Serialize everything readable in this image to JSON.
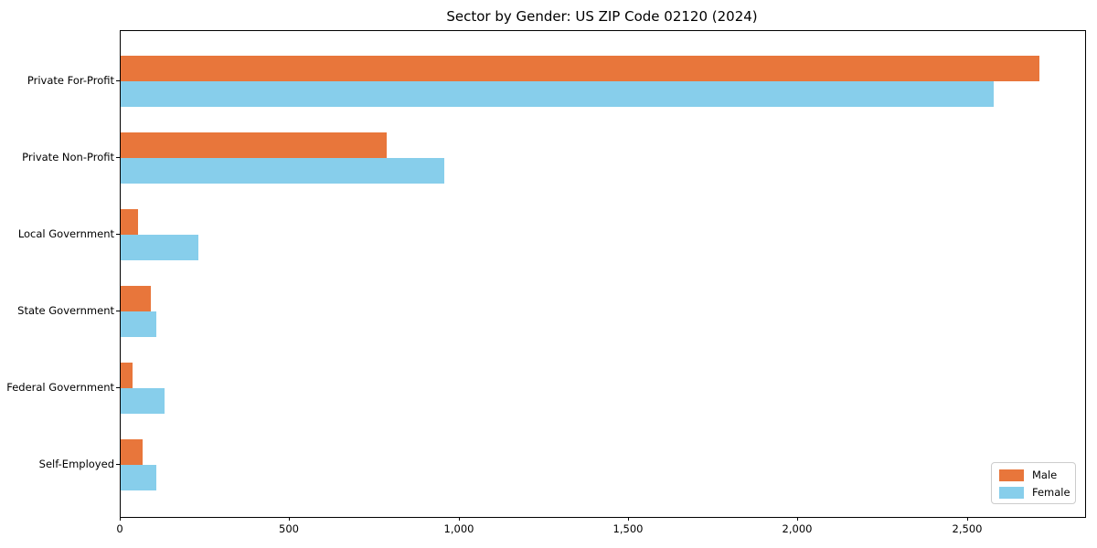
{
  "chart_data": {
    "type": "bar",
    "orientation": "horizontal",
    "title": "Sector by Gender: US ZIP Code 02120 (2024)",
    "xlabel": "",
    "ylabel": "",
    "categories": [
      "Private For-Profit",
      "Private Non-Profit",
      "Local Government",
      "State Government",
      "Federal Government",
      "Self-Employed"
    ],
    "series": [
      {
        "name": "Male",
        "color": "#e8763b",
        "values": [
          2710,
          785,
          50,
          90,
          35,
          65
        ]
      },
      {
        "name": "Female",
        "color": "#87ceeb",
        "values": [
          2575,
          955,
          230,
          105,
          130,
          105
        ]
      }
    ],
    "xlim": [
      0,
      2846
    ],
    "xticks": [
      0,
      500,
      1000,
      1500,
      2000,
      2500
    ],
    "xtick_labels": [
      "0",
      "500",
      "1,000",
      "1,500",
      "2,000",
      "2,500"
    ],
    "grid": false,
    "legend": {
      "position": "lower right",
      "labels": [
        "Male",
        "Female"
      ]
    }
  }
}
